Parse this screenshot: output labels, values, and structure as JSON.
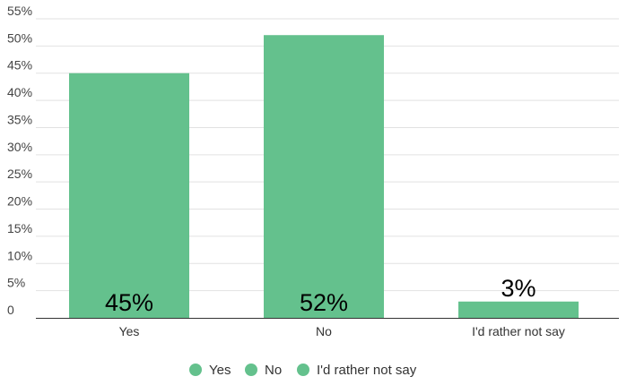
{
  "chart_data": {
    "type": "bar",
    "categories": [
      "Yes",
      "No",
      "I'd rather not say"
    ],
    "values": [
      45,
      52,
      3
    ],
    "data_labels": [
      "45%",
      "52%",
      "3%"
    ],
    "ylim": [
      0,
      55
    ],
    "y_ticks": [
      {
        "value": 0,
        "label": "0"
      },
      {
        "value": 5,
        "label": "5%"
      },
      {
        "value": 10,
        "label": "10%"
      },
      {
        "value": 15,
        "label": "15%"
      },
      {
        "value": 20,
        "label": "20%"
      },
      {
        "value": 25,
        "label": "25%"
      },
      {
        "value": 30,
        "label": "30%"
      },
      {
        "value": 35,
        "label": "35%"
      },
      {
        "value": 40,
        "label": "40%"
      },
      {
        "value": 45,
        "label": "45%"
      },
      {
        "value": 50,
        "label": "50%"
      },
      {
        "value": 55,
        "label": "55%"
      }
    ],
    "grid": true,
    "legend": {
      "placement": "bottom",
      "entries": [
        "Yes",
        "No",
        "I'd rather not say"
      ]
    },
    "colors": {
      "bar": "#64c18d",
      "legend_marker": "#64c18d"
    }
  }
}
